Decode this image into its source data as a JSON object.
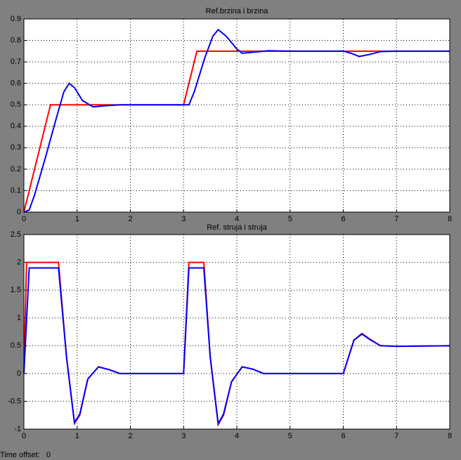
{
  "chart_data": [
    {
      "type": "line",
      "title": "Ref.brzina  i brzina",
      "xlim": [
        0,
        8
      ],
      "xticks": [
        0,
        1,
        2,
        3,
        4,
        5,
        6,
        7,
        8
      ],
      "ylim": [
        0,
        0.9
      ],
      "yticks": [
        0,
        0.1,
        0.2,
        0.3,
        0.4,
        0.5,
        0.6,
        0.7,
        0.8,
        0.9
      ],
      "grid": true,
      "series": [
        {
          "color": "#ff0000",
          "x": [
            0,
            0.5,
            3,
            3.25,
            8
          ],
          "values": [
            0,
            0.5,
            0.5,
            0.75,
            0.75
          ]
        },
        {
          "color": "#0000ff",
          "x": [
            0,
            0.1,
            0.2,
            0.4,
            0.6,
            0.75,
            0.85,
            0.95,
            1.1,
            1.3,
            1.5,
            1.8,
            2,
            3,
            3.1,
            3.2,
            3.4,
            3.55,
            3.65,
            3.8,
            4,
            4.1,
            4.3,
            4.6,
            5,
            6,
            6.15,
            6.3,
            6.5,
            6.7,
            7,
            8
          ],
          "values": [
            0,
            0.01,
            0.08,
            0.25,
            0.43,
            0.56,
            0.6,
            0.58,
            0.52,
            0.49,
            0.495,
            0.5,
            0.5,
            0.5,
            0.5,
            0.56,
            0.72,
            0.82,
            0.85,
            0.82,
            0.76,
            0.74,
            0.745,
            0.752,
            0.75,
            0.75,
            0.74,
            0.725,
            0.735,
            0.748,
            0.75,
            0.75
          ]
        }
      ]
    },
    {
      "type": "line",
      "title": "Ref. struja  i struja",
      "xlim": [
        0,
        8
      ],
      "xticks": [
        0,
        1,
        2,
        3,
        4,
        5,
        6,
        7,
        8
      ],
      "ylim": [
        -1,
        2.5
      ],
      "yticks": [
        -1,
        -0.5,
        0,
        0.5,
        1,
        1.5,
        2,
        2.5
      ],
      "grid": true,
      "series": [
        {
          "color": "#ff0000",
          "x": [
            0,
            0.05,
            0.65,
            0.8,
            0.95,
            1.05,
            1.2,
            1.4,
            1.6,
            1.8,
            2,
            3,
            3.1,
            3.38,
            3.5,
            3.65,
            3.75,
            3.9,
            4.1,
            4.3,
            4.5,
            5,
            6,
            6.1,
            6.2,
            6.35,
            6.5,
            6.7,
            7,
            8
          ],
          "values": [
            0,
            2,
            2,
            0.3,
            -0.9,
            -0.75,
            -0.1,
            0.12,
            0.07,
            0,
            0,
            0,
            2,
            2,
            0.3,
            -0.92,
            -0.75,
            -0.15,
            0.12,
            0.08,
            0,
            0,
            0,
            0.3,
            0.6,
            0.72,
            0.62,
            0.5,
            0.49,
            0.5
          ]
        },
        {
          "color": "#0000ff",
          "x": [
            0,
            0.1,
            0.65,
            0.8,
            0.95,
            1.05,
            1.2,
            1.4,
            1.6,
            1.8,
            2,
            3,
            3.1,
            3.38,
            3.5,
            3.65,
            3.75,
            3.9,
            4.1,
            4.3,
            4.5,
            5,
            6,
            6.1,
            6.2,
            6.35,
            6.5,
            6.7,
            7,
            8
          ],
          "values": [
            0,
            1.9,
            1.9,
            0.3,
            -0.88,
            -0.73,
            -0.1,
            0.12,
            0.07,
            0,
            0,
            0,
            1.9,
            1.9,
            0.3,
            -0.9,
            -0.73,
            -0.15,
            0.12,
            0.08,
            0,
            0,
            0,
            0.3,
            0.6,
            0.71,
            0.61,
            0.5,
            0.49,
            0.5
          ]
        }
      ]
    }
  ],
  "footer": {
    "label": "Time offset:",
    "value": 0
  }
}
